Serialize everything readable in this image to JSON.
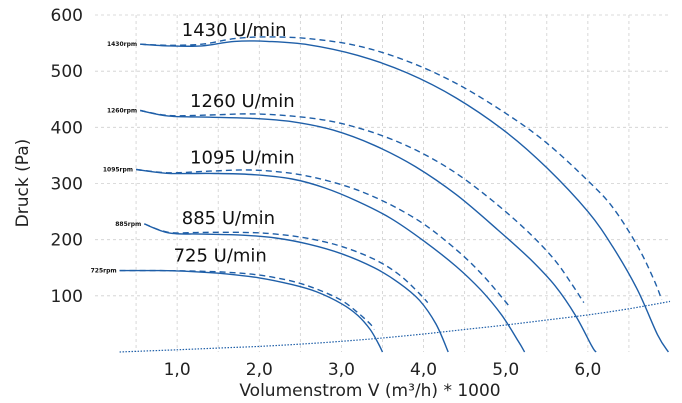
{
  "chart_data": {
    "type": "line",
    "xlabel": "Volumenstrom V (m³/h) * 1000",
    "ylabel": "Druck (Pa)",
    "xlim": [
      0,
      7
    ],
    "ylim": [
      0,
      600
    ],
    "grid": true,
    "x_ticks": [
      1,
      2,
      3,
      4,
      5,
      6
    ],
    "x_tick_labels": [
      "1,0",
      "2,0",
      "3,0",
      "4,0",
      "5,0",
      "6,0"
    ],
    "y_ticks": [
      100,
      200,
      300,
      400,
      500,
      600
    ],
    "y_tick_labels": [
      "100",
      "200",
      "300",
      "400",
      "500",
      "600"
    ],
    "series": [
      {
        "speed_label": "1430 U/min",
        "rpm_label": "1430rpm",
        "solid": [
          [
            0.55,
            548
          ],
          [
            0.9,
            545
          ],
          [
            1.3,
            545
          ],
          [
            1.7,
            553
          ],
          [
            2.1,
            553
          ],
          [
            2.6,
            547
          ],
          [
            3.2,
            528
          ],
          [
            3.8,
            497
          ],
          [
            4.4,
            452
          ],
          [
            5.0,
            392
          ],
          [
            5.5,
            328
          ],
          [
            6.0,
            250
          ],
          [
            6.3,
            188
          ],
          [
            6.6,
            112
          ],
          [
            6.85,
            30
          ],
          [
            6.98,
            0
          ]
        ],
        "dashed": [
          [
            0.55,
            548
          ],
          [
            0.9,
            546
          ],
          [
            1.3,
            548
          ],
          [
            1.7,
            558
          ],
          [
            2.1,
            561
          ],
          [
            2.6,
            558
          ],
          [
            3.2,
            545
          ],
          [
            3.8,
            518
          ],
          [
            4.4,
            478
          ],
          [
            5.0,
            425
          ],
          [
            5.5,
            372
          ],
          [
            6.0,
            305
          ],
          [
            6.3,
            258
          ],
          [
            6.6,
            190
          ],
          [
            6.8,
            130
          ],
          [
            6.9,
            93
          ]
        ]
      },
      {
        "speed_label": "1260 U/min",
        "rpm_label": "1260rpm",
        "solid": [
          [
            0.55,
            430
          ],
          [
            0.9,
            420
          ],
          [
            1.4,
            418
          ],
          [
            1.9,
            416
          ],
          [
            2.4,
            410
          ],
          [
            2.9,
            395
          ],
          [
            3.4,
            368
          ],
          [
            3.9,
            330
          ],
          [
            4.4,
            280
          ],
          [
            4.9,
            218
          ],
          [
            5.3,
            165
          ],
          [
            5.6,
            118
          ],
          [
            5.85,
            65
          ],
          [
            6.05,
            10
          ],
          [
            6.1,
            0
          ]
        ],
        "dashed": [
          [
            0.55,
            430
          ],
          [
            0.9,
            421
          ],
          [
            1.4,
            422
          ],
          [
            1.9,
            424
          ],
          [
            2.4,
            420
          ],
          [
            2.9,
            410
          ],
          [
            3.4,
            390
          ],
          [
            3.9,
            360
          ],
          [
            4.4,
            318
          ],
          [
            4.9,
            262
          ],
          [
            5.3,
            210
          ],
          [
            5.6,
            163
          ],
          [
            5.8,
            122
          ],
          [
            5.95,
            88
          ]
        ]
      },
      {
        "speed_label": "1095 U/min",
        "rpm_label": "1095rpm",
        "solid": [
          [
            0.5,
            325
          ],
          [
            0.9,
            318
          ],
          [
            1.4,
            318
          ],
          [
            1.9,
            316
          ],
          [
            2.4,
            308
          ],
          [
            2.8,
            292
          ],
          [
            3.2,
            268
          ],
          [
            3.6,
            238
          ],
          [
            4.0,
            198
          ],
          [
            4.4,
            152
          ],
          [
            4.7,
            110
          ],
          [
            4.95,
            66
          ],
          [
            5.15,
            20
          ],
          [
            5.23,
            0
          ]
        ],
        "dashed": [
          [
            0.5,
            325
          ],
          [
            0.9,
            319
          ],
          [
            1.4,
            322
          ],
          [
            1.9,
            324
          ],
          [
            2.4,
            318
          ],
          [
            2.8,
            306
          ],
          [
            3.2,
            288
          ],
          [
            3.6,
            262
          ],
          [
            4.0,
            228
          ],
          [
            4.4,
            182
          ],
          [
            4.7,
            140
          ],
          [
            4.95,
            98
          ],
          [
            5.05,
            80
          ]
        ]
      },
      {
        "speed_label": "885 U/min",
        "rpm_label": "885rpm",
        "solid": [
          [
            0.6,
            228
          ],
          [
            0.9,
            212
          ],
          [
            1.3,
            210
          ],
          [
            1.8,
            208
          ],
          [
            2.2,
            203
          ],
          [
            2.6,
            192
          ],
          [
            3.0,
            175
          ],
          [
            3.4,
            150
          ],
          [
            3.7,
            123
          ],
          [
            3.95,
            92
          ],
          [
            4.15,
            50
          ],
          [
            4.3,
            0
          ]
        ],
        "dashed": [
          [
            0.6,
            228
          ],
          [
            0.9,
            213
          ],
          [
            1.3,
            213
          ],
          [
            1.8,
            213
          ],
          [
            2.2,
            210
          ],
          [
            2.6,
            202
          ],
          [
            3.0,
            188
          ],
          [
            3.4,
            165
          ],
          [
            3.7,
            138
          ],
          [
            3.95,
            104
          ],
          [
            4.05,
            88
          ]
        ]
      },
      {
        "speed_label": "725 U/min",
        "rpm_label": "725rpm",
        "solid": [
          [
            0.3,
            145
          ],
          [
            0.8,
            145
          ],
          [
            1.2,
            143
          ],
          [
            1.6,
            139
          ],
          [
            2.0,
            132
          ],
          [
            2.4,
            120
          ],
          [
            2.7,
            107
          ],
          [
            3.0,
            86
          ],
          [
            3.2,
            65
          ],
          [
            3.35,
            40
          ],
          [
            3.45,
            15
          ],
          [
            3.5,
            0
          ]
        ],
        "dashed": [
          [
            0.3,
            145
          ],
          [
            0.8,
            145
          ],
          [
            1.2,
            144
          ],
          [
            1.6,
            142
          ],
          [
            2.0,
            137
          ],
          [
            2.4,
            126
          ],
          [
            2.7,
            112
          ],
          [
            3.0,
            92
          ],
          [
            3.2,
            70
          ],
          [
            3.35,
            50
          ],
          [
            3.4,
            40
          ]
        ]
      }
    ],
    "system_curve": [
      [
        0.3,
        0
      ],
      [
        1.0,
        4
      ],
      [
        1.5,
        7
      ],
      [
        2.0,
        10
      ],
      [
        2.5,
        14
      ],
      [
        3.0,
        19
      ],
      [
        3.5,
        25
      ],
      [
        4.0,
        32
      ],
      [
        4.5,
        40
      ],
      [
        5.0,
        48
      ],
      [
        5.5,
        57
      ],
      [
        6.0,
        66
      ],
      [
        6.5,
        77
      ],
      [
        7.0,
        90
      ]
    ]
  }
}
